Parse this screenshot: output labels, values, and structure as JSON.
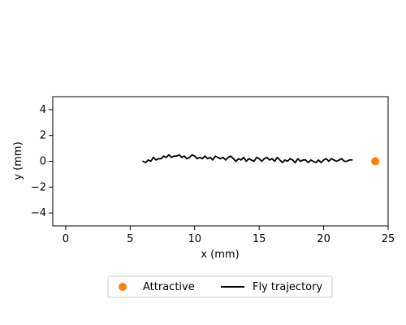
{
  "chart_data": {
    "type": "line",
    "xlabel": "x (mm)",
    "ylabel": "y (mm)",
    "xlim": [
      -1,
      25
    ],
    "ylim": [
      -5,
      5
    ],
    "xticks": [
      0,
      5,
      10,
      15,
      20,
      25
    ],
    "yticks": [
      -4,
      -2,
      0,
      2,
      4
    ],
    "grid": false,
    "legend_placement": "bottom-center",
    "series": [
      {
        "name": "Attractive",
        "kind": "scatter",
        "color": "#ff7f0e",
        "points": [
          {
            "x": 24.0,
            "y": 0.0
          }
        ]
      },
      {
        "name": "Fly trajectory",
        "kind": "line",
        "color": "#000000",
        "x": [
          6.0,
          6.2,
          6.4,
          6.6,
          6.8,
          7.0,
          7.2,
          7.4,
          7.6,
          7.8,
          8.0,
          8.2,
          8.4,
          8.6,
          8.8,
          9.0,
          9.2,
          9.4,
          9.6,
          9.8,
          10.0,
          10.2,
          10.4,
          10.6,
          10.8,
          11.0,
          11.2,
          11.4,
          11.6,
          11.8,
          12.0,
          12.2,
          12.4,
          12.6,
          12.8,
          13.0,
          13.2,
          13.4,
          13.6,
          13.8,
          14.0,
          14.2,
          14.4,
          14.6,
          14.8,
          15.0,
          15.2,
          15.4,
          15.6,
          15.8,
          16.0,
          16.2,
          16.4,
          16.6,
          16.8,
          17.0,
          17.2,
          17.4,
          17.6,
          17.8,
          18.0,
          18.2,
          18.4,
          18.6,
          18.8,
          19.0,
          19.2,
          19.4,
          19.6,
          19.8,
          20.0,
          20.2,
          20.4,
          20.6,
          20.8,
          21.0,
          21.2,
          21.4,
          21.6,
          21.8,
          22.0,
          22.2
        ],
        "y": [
          0.0,
          -0.1,
          0.1,
          0.0,
          0.3,
          0.1,
          0.2,
          0.2,
          0.4,
          0.3,
          0.5,
          0.3,
          0.4,
          0.4,
          0.5,
          0.3,
          0.4,
          0.2,
          0.3,
          0.5,
          0.4,
          0.2,
          0.3,
          0.2,
          0.4,
          0.2,
          0.3,
          0.1,
          0.4,
          0.3,
          0.2,
          0.3,
          0.1,
          0.3,
          0.4,
          0.2,
          0.0,
          0.2,
          0.1,
          0.3,
          0.0,
          0.2,
          0.1,
          0.0,
          0.3,
          0.2,
          0.0,
          0.2,
          0.3,
          0.1,
          0.2,
          0.0,
          0.3,
          0.1,
          -0.1,
          0.1,
          0.0,
          0.2,
          0.1,
          -0.1,
          0.2,
          0.0,
          0.1,
          0.1,
          -0.1,
          0.1,
          0.0,
          -0.1,
          0.1,
          -0.1,
          0.1,
          0.2,
          0.0,
          0.2,
          0.1,
          0.0,
          0.1,
          0.2,
          0.0,
          0.0,
          0.1,
          0.1
        ]
      }
    ]
  }
}
